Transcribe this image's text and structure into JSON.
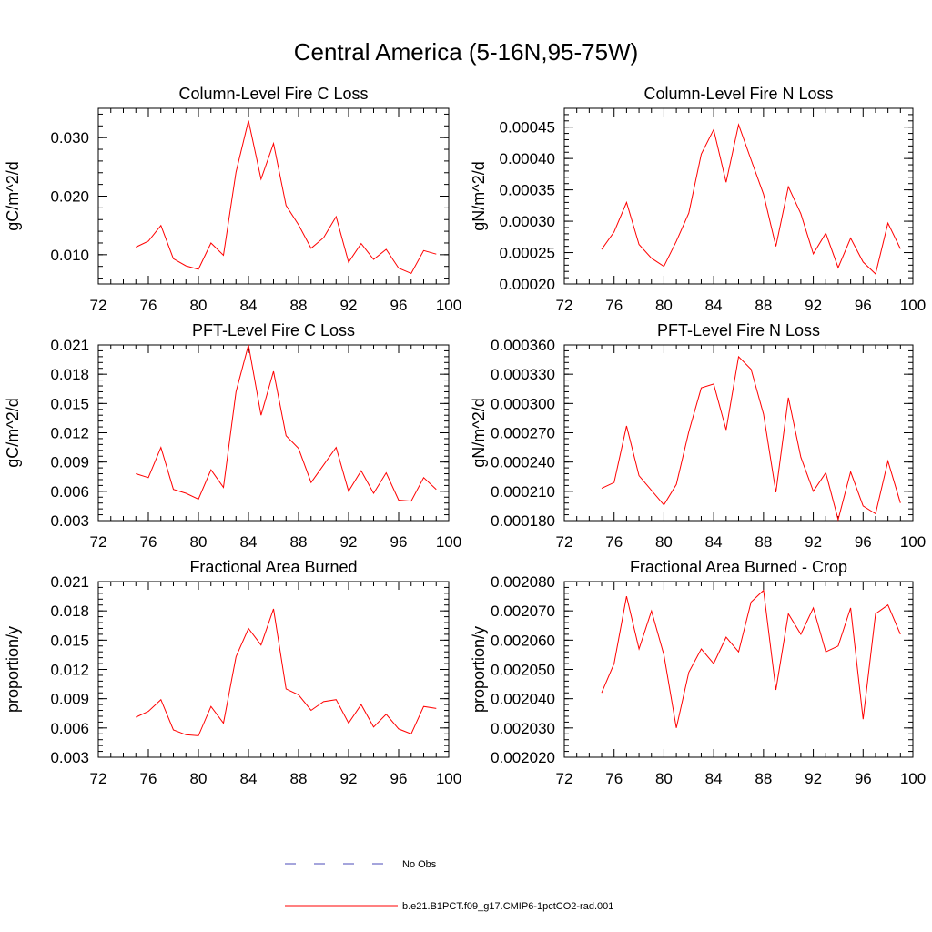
{
  "figure": {
    "title": "Central America (5-16N,95-75W)",
    "line_color": "#ff0000",
    "obs_line_color": "#4b4bb8"
  },
  "legend": [
    {
      "label": "No Obs",
      "style": "dashed",
      "color": "#4b4bb8"
    },
    {
      "label": "b.e21.B1PCT.f09_g17.CMIP6-1pctCO2-rad.001",
      "style": "solid",
      "color": "#ff0000"
    }
  ],
  "chart_data": [
    {
      "type": "line",
      "title": "Column-Level Fire C Loss",
      "ylabel": "gC/m^2/d",
      "xlim": [
        72,
        100
      ],
      "ylim": [
        0.005,
        0.035
      ],
      "xticks": [
        "72",
        "76",
        "80",
        "84",
        "88",
        "92",
        "96",
        "100"
      ],
      "yticks": [
        {
          "value": 0.01,
          "label": "0.010"
        },
        {
          "value": 0.02,
          "label": "0.020"
        },
        {
          "value": 0.03,
          "label": "0.030"
        }
      ],
      "x": [
        75,
        76,
        77,
        78,
        79,
        80,
        81,
        82,
        83,
        84,
        85,
        86,
        87,
        88,
        89,
        90,
        91,
        92,
        93,
        94,
        95,
        96,
        97,
        98,
        99
      ],
      "series": [
        {
          "values": [
            0.0113,
            0.0123,
            0.015,
            0.0093,
            0.0081,
            0.0075,
            0.012,
            0.0099,
            0.0241,
            0.0329,
            0.0229,
            0.029,
            0.0184,
            0.0151,
            0.0111,
            0.0129,
            0.0165,
            0.0087,
            0.0119,
            0.0092,
            0.0109,
            0.0077,
            0.0068,
            0.0107,
            0.0101
          ]
        }
      ]
    },
    {
      "type": "line",
      "title": "Column-Level Fire N Loss",
      "ylabel": "gN/m^2/d",
      "xlim": [
        72,
        100
      ],
      "ylim": [
        0.0002,
        0.00048
      ],
      "xticks": [
        "72",
        "76",
        "80",
        "84",
        "88",
        "92",
        "96",
        "100"
      ],
      "yticks": [
        {
          "value": 0.0002,
          "label": "0.00020"
        },
        {
          "value": 0.00025,
          "label": "0.00025"
        },
        {
          "value": 0.0003,
          "label": "0.00030"
        },
        {
          "value": 0.00035,
          "label": "0.00035"
        },
        {
          "value": 0.0004,
          "label": "0.00040"
        },
        {
          "value": 0.00045,
          "label": "0.00045"
        }
      ],
      "x": [
        75,
        76,
        77,
        78,
        79,
        80,
        81,
        82,
        83,
        84,
        85,
        86,
        87,
        88,
        89,
        90,
        91,
        92,
        93,
        94,
        95,
        96,
        97,
        98,
        99
      ],
      "series": [
        {
          "values": [
            0.000255,
            0.000283,
            0.00033,
            0.000263,
            0.000241,
            0.000228,
            0.000268,
            0.000313,
            0.000407,
            0.000446,
            0.000362,
            0.000454,
            0.000398,
            0.000343,
            0.00026,
            0.000355,
            0.000312,
            0.000248,
            0.000281,
            0.000226,
            0.000273,
            0.000235,
            0.000216,
            0.000297,
            0.000256
          ]
        }
      ]
    },
    {
      "type": "line",
      "title": "PFT-Level Fire C Loss",
      "ylabel": "gC/m^2/d",
      "xlim": [
        72,
        100
      ],
      "ylim": [
        0.003,
        0.021
      ],
      "xticks": [
        "72",
        "76",
        "80",
        "84",
        "88",
        "92",
        "96",
        "100"
      ],
      "yticks": [
        {
          "value": 0.003,
          "label": "0.003"
        },
        {
          "value": 0.006,
          "label": "0.006"
        },
        {
          "value": 0.009,
          "label": "0.009"
        },
        {
          "value": 0.012,
          "label": "0.012"
        },
        {
          "value": 0.015,
          "label": "0.015"
        },
        {
          "value": 0.018,
          "label": "0.018"
        },
        {
          "value": 0.021,
          "label": "0.021"
        }
      ],
      "x": [
        75,
        76,
        77,
        78,
        79,
        80,
        81,
        82,
        83,
        84,
        85,
        86,
        87,
        88,
        89,
        90,
        91,
        92,
        93,
        94,
        95,
        96,
        97,
        98,
        99
      ],
      "series": [
        {
          "values": [
            0.0078,
            0.0074,
            0.0105,
            0.0062,
            0.0058,
            0.0052,
            0.0082,
            0.0064,
            0.0162,
            0.021,
            0.0138,
            0.0183,
            0.0117,
            0.0104,
            0.0069,
            0.0087,
            0.0105,
            0.006,
            0.0081,
            0.0058,
            0.0079,
            0.0051,
            0.005,
            0.0074,
            0.0062
          ]
        }
      ]
    },
    {
      "type": "line",
      "title": "PFT-Level Fire N Loss",
      "ylabel": "gN/m^2/d",
      "xlim": [
        72,
        100
      ],
      "ylim": [
        0.00018,
        0.00036
      ],
      "xticks": [
        "72",
        "76",
        "80",
        "84",
        "88",
        "92",
        "96",
        "100"
      ],
      "yticks": [
        {
          "value": 0.00018,
          "label": "0.000180"
        },
        {
          "value": 0.00021,
          "label": "0.000210"
        },
        {
          "value": 0.00024,
          "label": "0.000240"
        },
        {
          "value": 0.00027,
          "label": "0.000270"
        },
        {
          "value": 0.0003,
          "label": "0.000300"
        },
        {
          "value": 0.00033,
          "label": "0.000330"
        },
        {
          "value": 0.00036,
          "label": "0.000360"
        }
      ],
      "x": [
        75,
        76,
        77,
        78,
        79,
        80,
        81,
        82,
        83,
        84,
        85,
        86,
        87,
        88,
        89,
        90,
        91,
        92,
        93,
        94,
        95,
        96,
        97,
        98,
        99
      ],
      "series": [
        {
          "values": [
            0.000213,
            0.000219,
            0.000277,
            0.000226,
            0.000211,
            0.000196,
            0.000217,
            0.000271,
            0.000316,
            0.00032,
            0.000273,
            0.000348,
            0.000335,
            0.000289,
            0.000209,
            0.000306,
            0.000245,
            0.00021,
            0.000229,
            0.000181,
            0.00023,
            0.000195,
            0.000187,
            0.000241,
            0.000198
          ]
        }
      ]
    },
    {
      "type": "line",
      "title": "Fractional Area Burned",
      "ylabel": "proportion/y",
      "xlim": [
        72,
        100
      ],
      "ylim": [
        0.003,
        0.021
      ],
      "xticks": [
        "72",
        "76",
        "80",
        "84",
        "88",
        "92",
        "96",
        "100"
      ],
      "yticks": [
        {
          "value": 0.003,
          "label": "0.003"
        },
        {
          "value": 0.006,
          "label": "0.006"
        },
        {
          "value": 0.009,
          "label": "0.009"
        },
        {
          "value": 0.012,
          "label": "0.012"
        },
        {
          "value": 0.015,
          "label": "0.015"
        },
        {
          "value": 0.018,
          "label": "0.018"
        },
        {
          "value": 0.021,
          "label": "0.021"
        }
      ],
      "x": [
        75,
        76,
        77,
        78,
        79,
        80,
        81,
        82,
        83,
        84,
        85,
        86,
        87,
        88,
        89,
        90,
        91,
        92,
        93,
        94,
        95,
        96,
        97,
        98,
        99
      ],
      "series": [
        {
          "values": [
            0.0071,
            0.0077,
            0.0089,
            0.0058,
            0.0053,
            0.0052,
            0.0082,
            0.0065,
            0.0133,
            0.0162,
            0.0145,
            0.0182,
            0.01,
            0.0094,
            0.0078,
            0.0087,
            0.0089,
            0.0065,
            0.0084,
            0.0061,
            0.0074,
            0.0059,
            0.0054,
            0.0082,
            0.008
          ]
        }
      ]
    },
    {
      "type": "line",
      "title": "Fractional Area Burned - Crop",
      "ylabel": "proportion/y",
      "xlim": [
        72,
        100
      ],
      "ylim": [
        0.00202,
        0.00208
      ],
      "xticks": [
        "72",
        "76",
        "80",
        "84",
        "88",
        "92",
        "96",
        "100"
      ],
      "yticks": [
        {
          "value": 0.00202,
          "label": "0.002020"
        },
        {
          "value": 0.00203,
          "label": "0.002030"
        },
        {
          "value": 0.00204,
          "label": "0.002040"
        },
        {
          "value": 0.00205,
          "label": "0.002050"
        },
        {
          "value": 0.00206,
          "label": "0.002060"
        },
        {
          "value": 0.00207,
          "label": "0.002070"
        },
        {
          "value": 0.00208,
          "label": "0.002080"
        }
      ],
      "x": [
        75,
        76,
        77,
        78,
        79,
        80,
        81,
        82,
        83,
        84,
        85,
        86,
        87,
        88,
        89,
        90,
        91,
        92,
        93,
        94,
        95,
        96,
        97,
        98,
        99
      ],
      "series": [
        {
          "values": [
            0.002042,
            0.002052,
            0.002075,
            0.002057,
            0.00207,
            0.002055,
            0.00203,
            0.002049,
            0.002057,
            0.002052,
            0.002061,
            0.002056,
            0.002073,
            0.002077,
            0.002043,
            0.002069,
            0.002062,
            0.002071,
            0.002056,
            0.002058,
            0.002071,
            0.002033,
            0.002069,
            0.002072,
            0.002062
          ]
        }
      ]
    }
  ]
}
